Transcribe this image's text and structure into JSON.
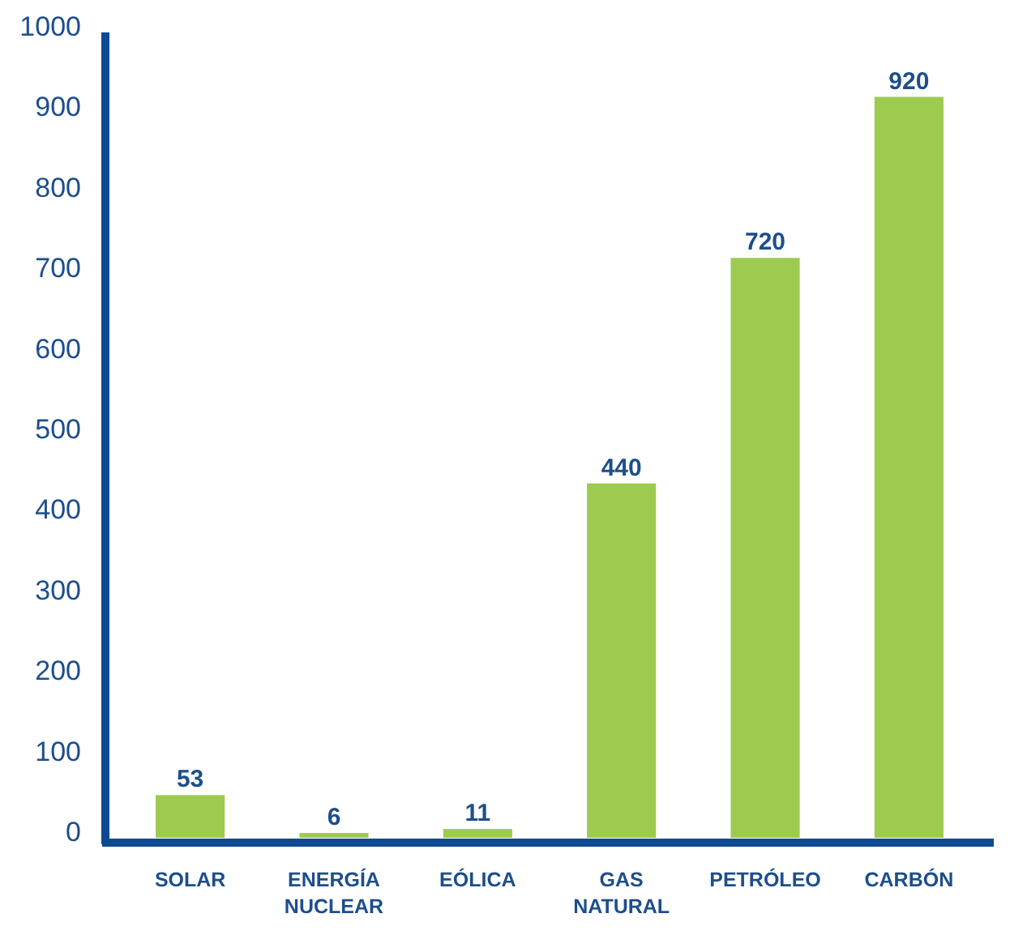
{
  "chart_data": {
    "type": "bar",
    "categories": [
      "SOLAR",
      "ENERGÍA NUCLEAR",
      "EÓLICA",
      "GAS NATURAL",
      "PETRÓLEO",
      "CARBÓN"
    ],
    "values": [
      53,
      6,
      11,
      440,
      720,
      920
    ],
    "color": "#9dcb50",
    "ylim": [
      0,
      1000
    ],
    "yticks": [
      0,
      100,
      200,
      300,
      400,
      500,
      600,
      700,
      800,
      900,
      1000
    ],
    "data_labels": true,
    "grid": false
  }
}
